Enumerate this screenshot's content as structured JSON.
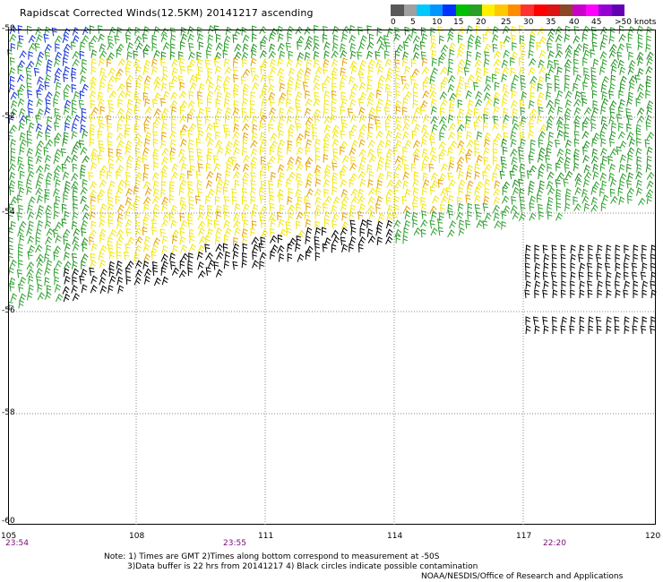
{
  "title": "Rapidscat Corrected Winds(12.5KM) 20141217 ascending",
  "color_scale": {
    "colors": [
      "#585858",
      "#a0a0a0",
      "#00c8ff",
      "#0096ff",
      "#0032ff",
      "#00c000",
      "#28a028",
      "#fff000",
      "#ffc800",
      "#ff8c00",
      "#ff3232",
      "#ff0000",
      "#dc1414",
      "#8c4628",
      "#c800c8",
      "#ff00ff",
      "#9600d2",
      "#6400b4"
    ],
    "labels": [
      "0",
      "5",
      "10",
      "15",
      "20",
      "25",
      "30",
      "35",
      "40",
      "45",
      ">50 knots"
    ]
  },
  "map": {
    "lat_labels": [
      "-50",
      "-52",
      "-54",
      "-56",
      "-58",
      "-60"
    ],
    "lon_labels": [
      "105",
      "108",
      "111",
      "114",
      "117",
      "120"
    ],
    "time_labels": [
      "23:54",
      "23:55",
      "22:20"
    ],
    "gridline_color": "#888888"
  },
  "wind_colors": {
    "calm": "#000000",
    "light": "#2ca02c",
    "mod": "#1f8f1f",
    "fresh": "#f2e60a",
    "strong": "#e6a000",
    "blue": "#1030d8",
    "cyan": "#40a0ff"
  },
  "notes": {
    "line1": "Note: 1) Times are GMT 2)Times along bottom correspond to measurement at -50S",
    "line2": "3)Data buffer is 22 hrs from 20141217 4) Black circles indicate possible contamination",
    "credit": "NOAA/NESDIS/Office of Research and Applications"
  }
}
